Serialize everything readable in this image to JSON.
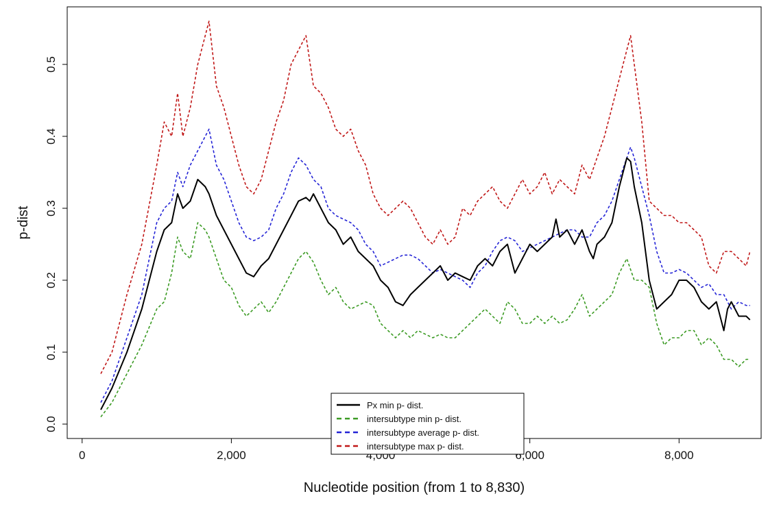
{
  "chart_data": {
    "type": "line",
    "xlabel": "Nucleotide position (from 1 to 8,830)",
    "ylabel": "p-dist",
    "xlim": [
      -200,
      9100
    ],
    "ylim": [
      -0.02,
      0.58
    ],
    "x_ticks": [
      0,
      2000,
      4000,
      6000,
      8000
    ],
    "x_tick_labels": [
      "0",
      "2,000",
      "4,000",
      "6,000",
      "8,000"
    ],
    "y_ticks": [
      0.0,
      0.1,
      0.2,
      0.3,
      0.4,
      0.5
    ],
    "y_tick_labels": [
      "0.0",
      "0.1",
      "0.2",
      "0.3",
      "0.4",
      "0.5"
    ],
    "grid": false,
    "legend_position": "bottom-center",
    "series": [
      {
        "name": "Px min p- dist.",
        "color": "#000000",
        "dash": "solid",
        "x": [
          250,
          400,
          600,
          800,
          1000,
          1100,
          1200,
          1280,
          1350,
          1450,
          1550,
          1650,
          1700,
          1800,
          1900,
          2000,
          2100,
          2200,
          2300,
          2400,
          2500,
          2600,
          2700,
          2800,
          2900,
          3000,
          3050,
          3100,
          3200,
          3300,
          3400,
          3500,
          3600,
          3700,
          3800,
          3900,
          4000,
          4100,
          4200,
          4300,
          4400,
          4500,
          4600,
          4700,
          4800,
          4900,
          5000,
          5100,
          5200,
          5300,
          5400,
          5500,
          5600,
          5700,
          5800,
          5900,
          6000,
          6100,
          6200,
          6300,
          6350,
          6400,
          6500,
          6600,
          6700,
          6800,
          6850,
          6900,
          7000,
          7100,
          7200,
          7300,
          7350,
          7400,
          7500,
          7600,
          7700,
          7800,
          7900,
          8000,
          8100,
          8200,
          8300,
          8400,
          8500,
          8600,
          8650,
          8700,
          8800,
          8900,
          8950
        ],
        "y": [
          0.02,
          0.05,
          0.1,
          0.16,
          0.24,
          0.27,
          0.28,
          0.32,
          0.3,
          0.31,
          0.34,
          0.33,
          0.32,
          0.29,
          0.27,
          0.25,
          0.23,
          0.21,
          0.205,
          0.22,
          0.23,
          0.25,
          0.27,
          0.29,
          0.31,
          0.315,
          0.31,
          0.32,
          0.3,
          0.28,
          0.27,
          0.25,
          0.26,
          0.24,
          0.23,
          0.22,
          0.2,
          0.19,
          0.17,
          0.165,
          0.18,
          0.19,
          0.2,
          0.21,
          0.22,
          0.2,
          0.21,
          0.205,
          0.2,
          0.22,
          0.23,
          0.22,
          0.24,
          0.25,
          0.21,
          0.23,
          0.25,
          0.24,
          0.25,
          0.26,
          0.285,
          0.26,
          0.27,
          0.25,
          0.27,
          0.24,
          0.23,
          0.25,
          0.26,
          0.28,
          0.33,
          0.37,
          0.365,
          0.33,
          0.28,
          0.2,
          0.16,
          0.17,
          0.18,
          0.2,
          0.2,
          0.19,
          0.17,
          0.16,
          0.17,
          0.13,
          0.16,
          0.17,
          0.15,
          0.15,
          0.145
        ]
      },
      {
        "name": "intersubtype min p- dist.",
        "color": "#3a9a22",
        "dash": "dashed",
        "x": [
          250,
          400,
          600,
          800,
          1000,
          1100,
          1200,
          1280,
          1350,
          1450,
          1550,
          1650,
          1700,
          1800,
          1900,
          2000,
          2100,
          2200,
          2300,
          2400,
          2500,
          2600,
          2700,
          2800,
          2900,
          3000,
          3100,
          3200,
          3300,
          3400,
          3500,
          3600,
          3700,
          3800,
          3900,
          4000,
          4100,
          4200,
          4300,
          4400,
          4500,
          4600,
          4700,
          4800,
          4900,
          5000,
          5100,
          5200,
          5300,
          5400,
          5500,
          5600,
          5700,
          5800,
          5900,
          6000,
          6100,
          6200,
          6300,
          6400,
          6500,
          6600,
          6700,
          6800,
          6900,
          7000,
          7100,
          7200,
          7300,
          7400,
          7500,
          7600,
          7700,
          7800,
          7900,
          8000,
          8100,
          8200,
          8300,
          8400,
          8500,
          8600,
          8700,
          8800,
          8900,
          8950
        ],
        "y": [
          0.01,
          0.03,
          0.07,
          0.11,
          0.16,
          0.17,
          0.21,
          0.26,
          0.24,
          0.23,
          0.28,
          0.27,
          0.26,
          0.23,
          0.2,
          0.19,
          0.165,
          0.15,
          0.16,
          0.17,
          0.155,
          0.17,
          0.19,
          0.21,
          0.23,
          0.24,
          0.225,
          0.2,
          0.18,
          0.19,
          0.17,
          0.16,
          0.165,
          0.17,
          0.165,
          0.14,
          0.13,
          0.12,
          0.13,
          0.12,
          0.13,
          0.125,
          0.12,
          0.125,
          0.12,
          0.12,
          0.13,
          0.14,
          0.15,
          0.16,
          0.15,
          0.14,
          0.17,
          0.16,
          0.14,
          0.14,
          0.15,
          0.14,
          0.15,
          0.14,
          0.145,
          0.16,
          0.18,
          0.15,
          0.16,
          0.17,
          0.18,
          0.21,
          0.23,
          0.2,
          0.2,
          0.19,
          0.14,
          0.11,
          0.12,
          0.12,
          0.13,
          0.13,
          0.11,
          0.12,
          0.11,
          0.09,
          0.09,
          0.08,
          0.09,
          0.09
        ]
      },
      {
        "name": "intersubtype average p- dist.",
        "color": "#2323d6",
        "dash": "dashed",
        "x": [
          250,
          400,
          600,
          800,
          1000,
          1100,
          1200,
          1280,
          1350,
          1450,
          1550,
          1650,
          1700,
          1800,
          1900,
          2000,
          2100,
          2200,
          2300,
          2400,
          2500,
          2600,
          2700,
          2800,
          2900,
          3000,
          3100,
          3200,
          3300,
          3400,
          3500,
          3600,
          3700,
          3800,
          3900,
          4000,
          4100,
          4200,
          4300,
          4400,
          4500,
          4600,
          4700,
          4800,
          4900,
          5000,
          5100,
          5200,
          5300,
          5400,
          5500,
          5600,
          5700,
          5800,
          5900,
          6000,
          6100,
          6200,
          6300,
          6400,
          6500,
          6600,
          6700,
          6800,
          6900,
          7000,
          7100,
          7200,
          7300,
          7350,
          7400,
          7500,
          7600,
          7700,
          7800,
          7900,
          8000,
          8100,
          8200,
          8300,
          8400,
          8500,
          8600,
          8700,
          8800,
          8900,
          8950
        ],
        "y": [
          0.03,
          0.06,
          0.12,
          0.18,
          0.28,
          0.3,
          0.31,
          0.35,
          0.33,
          0.36,
          0.38,
          0.4,
          0.41,
          0.36,
          0.34,
          0.31,
          0.28,
          0.26,
          0.255,
          0.26,
          0.27,
          0.3,
          0.32,
          0.35,
          0.37,
          0.36,
          0.34,
          0.33,
          0.3,
          0.29,
          0.285,
          0.28,
          0.27,
          0.25,
          0.24,
          0.22,
          0.225,
          0.23,
          0.235,
          0.235,
          0.23,
          0.22,
          0.21,
          0.215,
          0.21,
          0.205,
          0.2,
          0.19,
          0.21,
          0.22,
          0.24,
          0.255,
          0.26,
          0.255,
          0.24,
          0.245,
          0.25,
          0.255,
          0.26,
          0.265,
          0.27,
          0.27,
          0.26,
          0.26,
          0.28,
          0.29,
          0.31,
          0.34,
          0.37,
          0.385,
          0.37,
          0.33,
          0.29,
          0.24,
          0.21,
          0.21,
          0.215,
          0.21,
          0.2,
          0.19,
          0.195,
          0.18,
          0.18,
          0.16,
          0.17,
          0.165,
          0.165
        ]
      },
      {
        "name": "intersubtype max p- dist.",
        "color": "#c01717",
        "dash": "dashed",
        "x": [
          250,
          400,
          600,
          800,
          1000,
          1100,
          1200,
          1280,
          1350,
          1450,
          1550,
          1650,
          1700,
          1800,
          1900,
          2000,
          2100,
          2200,
          2300,
          2400,
          2500,
          2600,
          2700,
          2800,
          2900,
          3000,
          3100,
          3200,
          3300,
          3400,
          3500,
          3600,
          3700,
          3800,
          3900,
          4000,
          4100,
          4200,
          4300,
          4400,
          4500,
          4600,
          4700,
          4800,
          4900,
          5000,
          5100,
          5200,
          5300,
          5400,
          5500,
          5600,
          5700,
          5800,
          5900,
          6000,
          6100,
          6200,
          6300,
          6400,
          6500,
          6600,
          6700,
          6800,
          6900,
          7000,
          7100,
          7200,
          7300,
          7350,
          7400,
          7500,
          7600,
          7700,
          7800,
          7900,
          8000,
          8100,
          8200,
          8300,
          8400,
          8500,
          8600,
          8700,
          8800,
          8900,
          8950
        ],
        "y": [
          0.07,
          0.1,
          0.18,
          0.25,
          0.36,
          0.42,
          0.4,
          0.46,
          0.4,
          0.44,
          0.5,
          0.54,
          0.56,
          0.47,
          0.44,
          0.4,
          0.36,
          0.33,
          0.32,
          0.34,
          0.38,
          0.42,
          0.45,
          0.5,
          0.52,
          0.54,
          0.47,
          0.46,
          0.44,
          0.41,
          0.4,
          0.41,
          0.38,
          0.36,
          0.32,
          0.3,
          0.29,
          0.3,
          0.31,
          0.3,
          0.28,
          0.26,
          0.25,
          0.27,
          0.25,
          0.26,
          0.3,
          0.29,
          0.31,
          0.32,
          0.33,
          0.31,
          0.3,
          0.32,
          0.34,
          0.32,
          0.33,
          0.35,
          0.32,
          0.34,
          0.33,
          0.32,
          0.36,
          0.34,
          0.37,
          0.4,
          0.44,
          0.48,
          0.52,
          0.54,
          0.5,
          0.42,
          0.31,
          0.3,
          0.29,
          0.29,
          0.28,
          0.28,
          0.27,
          0.26,
          0.22,
          0.21,
          0.24,
          0.24,
          0.23,
          0.22,
          0.24
        ]
      }
    ]
  }
}
